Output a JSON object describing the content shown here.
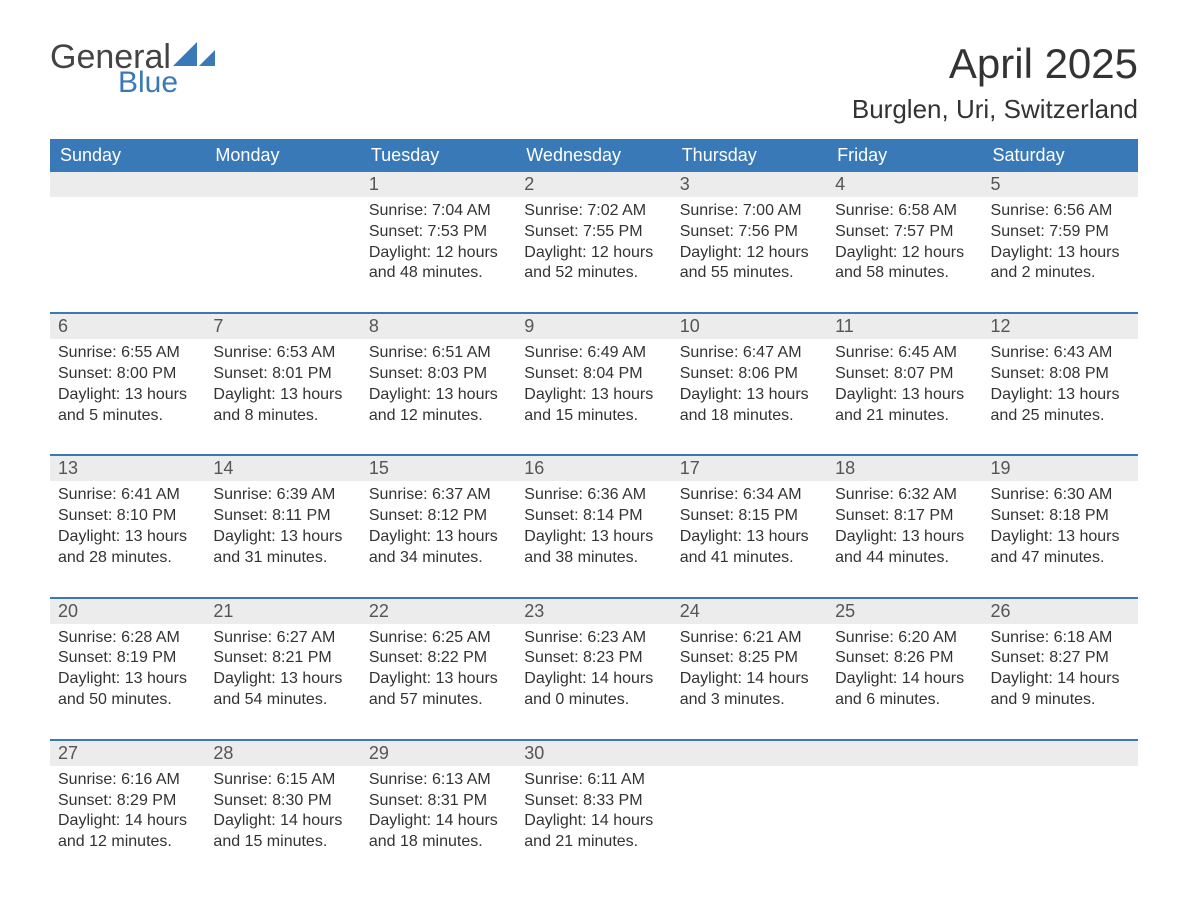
{
  "brand": {
    "word1": "General",
    "word2": "Blue",
    "text_color": "#444444",
    "accent_color": "#3a79b7"
  },
  "title": "April 2025",
  "location": "Burglen, Uri, Switzerland",
  "colors": {
    "header_bg": "#3a79b7",
    "header_text": "#ffffff",
    "daynum_bg": "#ececec",
    "daynum_text": "#555555",
    "border": "#3a79b7",
    "body_text": "#333333",
    "page_bg": "#ffffff"
  },
  "fonts": {
    "title_size_pt": 42,
    "location_size_pt": 26,
    "header_size_pt": 18,
    "cell_size_pt": 16
  },
  "weekdays": [
    "Sunday",
    "Monday",
    "Tuesday",
    "Wednesday",
    "Thursday",
    "Friday",
    "Saturday"
  ],
  "grid": {
    "rows": 5,
    "cols": 7,
    "leading_blanks": 2
  },
  "days": [
    {
      "n": 1,
      "sunrise": "7:04 AM",
      "sunset": "7:53 PM",
      "daylight": "12 hours and 48 minutes."
    },
    {
      "n": 2,
      "sunrise": "7:02 AM",
      "sunset": "7:55 PM",
      "daylight": "12 hours and 52 minutes."
    },
    {
      "n": 3,
      "sunrise": "7:00 AM",
      "sunset": "7:56 PM",
      "daylight": "12 hours and 55 minutes."
    },
    {
      "n": 4,
      "sunrise": "6:58 AM",
      "sunset": "7:57 PM",
      "daylight": "12 hours and 58 minutes."
    },
    {
      "n": 5,
      "sunrise": "6:56 AM",
      "sunset": "7:59 PM",
      "daylight": "13 hours and 2 minutes."
    },
    {
      "n": 6,
      "sunrise": "6:55 AM",
      "sunset": "8:00 PM",
      "daylight": "13 hours and 5 minutes."
    },
    {
      "n": 7,
      "sunrise": "6:53 AM",
      "sunset": "8:01 PM",
      "daylight": "13 hours and 8 minutes."
    },
    {
      "n": 8,
      "sunrise": "6:51 AM",
      "sunset": "8:03 PM",
      "daylight": "13 hours and 12 minutes."
    },
    {
      "n": 9,
      "sunrise": "6:49 AM",
      "sunset": "8:04 PM",
      "daylight": "13 hours and 15 minutes."
    },
    {
      "n": 10,
      "sunrise": "6:47 AM",
      "sunset": "8:06 PM",
      "daylight": "13 hours and 18 minutes."
    },
    {
      "n": 11,
      "sunrise": "6:45 AM",
      "sunset": "8:07 PM",
      "daylight": "13 hours and 21 minutes."
    },
    {
      "n": 12,
      "sunrise": "6:43 AM",
      "sunset": "8:08 PM",
      "daylight": "13 hours and 25 minutes."
    },
    {
      "n": 13,
      "sunrise": "6:41 AM",
      "sunset": "8:10 PM",
      "daylight": "13 hours and 28 minutes."
    },
    {
      "n": 14,
      "sunrise": "6:39 AM",
      "sunset": "8:11 PM",
      "daylight": "13 hours and 31 minutes."
    },
    {
      "n": 15,
      "sunrise": "6:37 AM",
      "sunset": "8:12 PM",
      "daylight": "13 hours and 34 minutes."
    },
    {
      "n": 16,
      "sunrise": "6:36 AM",
      "sunset": "8:14 PM",
      "daylight": "13 hours and 38 minutes."
    },
    {
      "n": 17,
      "sunrise": "6:34 AM",
      "sunset": "8:15 PM",
      "daylight": "13 hours and 41 minutes."
    },
    {
      "n": 18,
      "sunrise": "6:32 AM",
      "sunset": "8:17 PM",
      "daylight": "13 hours and 44 minutes."
    },
    {
      "n": 19,
      "sunrise": "6:30 AM",
      "sunset": "8:18 PM",
      "daylight": "13 hours and 47 minutes."
    },
    {
      "n": 20,
      "sunrise": "6:28 AM",
      "sunset": "8:19 PM",
      "daylight": "13 hours and 50 minutes."
    },
    {
      "n": 21,
      "sunrise": "6:27 AM",
      "sunset": "8:21 PM",
      "daylight": "13 hours and 54 minutes."
    },
    {
      "n": 22,
      "sunrise": "6:25 AM",
      "sunset": "8:22 PM",
      "daylight": "13 hours and 57 minutes."
    },
    {
      "n": 23,
      "sunrise": "6:23 AM",
      "sunset": "8:23 PM",
      "daylight": "14 hours and 0 minutes."
    },
    {
      "n": 24,
      "sunrise": "6:21 AM",
      "sunset": "8:25 PM",
      "daylight": "14 hours and 3 minutes."
    },
    {
      "n": 25,
      "sunrise": "6:20 AM",
      "sunset": "8:26 PM",
      "daylight": "14 hours and 6 minutes."
    },
    {
      "n": 26,
      "sunrise": "6:18 AM",
      "sunset": "8:27 PM",
      "daylight": "14 hours and 9 minutes."
    },
    {
      "n": 27,
      "sunrise": "6:16 AM",
      "sunset": "8:29 PM",
      "daylight": "14 hours and 12 minutes."
    },
    {
      "n": 28,
      "sunrise": "6:15 AM",
      "sunset": "8:30 PM",
      "daylight": "14 hours and 15 minutes."
    },
    {
      "n": 29,
      "sunrise": "6:13 AM",
      "sunset": "8:31 PM",
      "daylight": "14 hours and 18 minutes."
    },
    {
      "n": 30,
      "sunrise": "6:11 AM",
      "sunset": "8:33 PM",
      "daylight": "14 hours and 21 minutes."
    }
  ],
  "labels": {
    "sunrise": "Sunrise:",
    "sunset": "Sunset:",
    "daylight": "Daylight:"
  }
}
